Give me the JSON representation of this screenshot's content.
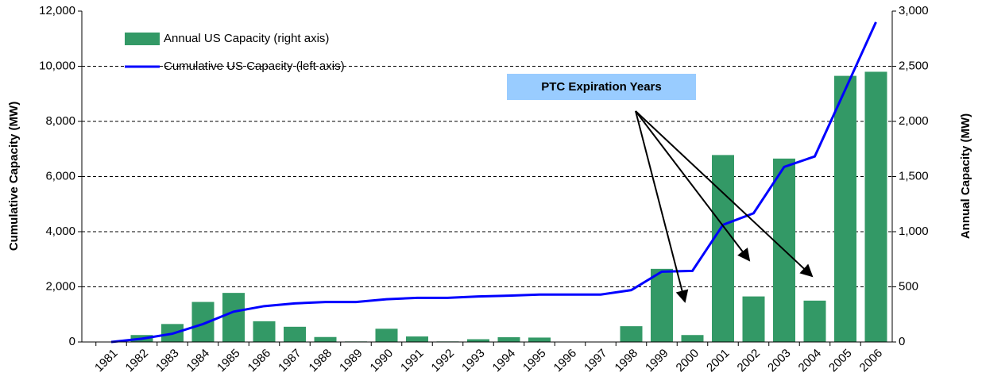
{
  "chart_data": {
    "type": "bar",
    "categories": [
      "1981",
      "1982",
      "1983",
      "1984",
      "1985",
      "1986",
      "1987",
      "1988",
      "1989",
      "1990",
      "1991",
      "1992",
      "1993",
      "1994",
      "1995",
      "1996",
      "1997",
      "1998",
      "1999",
      "2000",
      "2001",
      "2002",
      "2003",
      "2004",
      "2005",
      "2006"
    ],
    "series": [
      {
        "name": "Annual US Capacity (right axis)",
        "type": "bar",
        "axis": "y2",
        "color": "#339966",
        "values": [
          3,
          63,
          163,
          363,
          445,
          188,
          138,
          45,
          5,
          120,
          50,
          5,
          25,
          43,
          40,
          2,
          3,
          143,
          663,
          63,
          1695,
          413,
          1663,
          375,
          2413,
          2450
        ]
      },
      {
        "name": "Cumulative US Capacity (left axis)",
        "type": "line",
        "color": "#0000ff",
        "values": [
          0,
          120,
          300,
          650,
          1100,
          1300,
          1400,
          1450,
          1450,
          1550,
          1600,
          1600,
          1650,
          1680,
          1720,
          1720,
          1720,
          1880,
          2550,
          2580,
          4250,
          4670,
          6350,
          6730,
          9160,
          11600
        ]
      }
    ],
    "y_label": "Cumulative Capacity (MW)",
    "y2_label": "Annual Capacity (MW)",
    "ylim": [
      0,
      12000
    ],
    "yticks": [
      0,
      {
        "value": 2000,
        "label": "2,000"
      },
      {
        "value": 4000,
        "label": "4,000"
      },
      {
        "value": 6000,
        "label": "6,000"
      },
      {
        "value": 8000,
        "label": "8,000"
      },
      {
        "value": 10000,
        "label": "10,000"
      },
      {
        "value": 12000,
        "label": "12,000"
      }
    ],
    "y2lim": [
      0,
      3000
    ],
    "y2ticks": [
      0,
      500,
      {
        "value": 1000,
        "label": "1,000"
      },
      {
        "value": 1500,
        "label": "1,500"
      },
      {
        "value": 2000,
        "label": "2,000"
      },
      {
        "value": 2500,
        "label": "2,500"
      },
      {
        "value": 3000,
        "label": "3,000"
      }
    ],
    "grid": true,
    "annotation": "PTC Expiration Years"
  }
}
